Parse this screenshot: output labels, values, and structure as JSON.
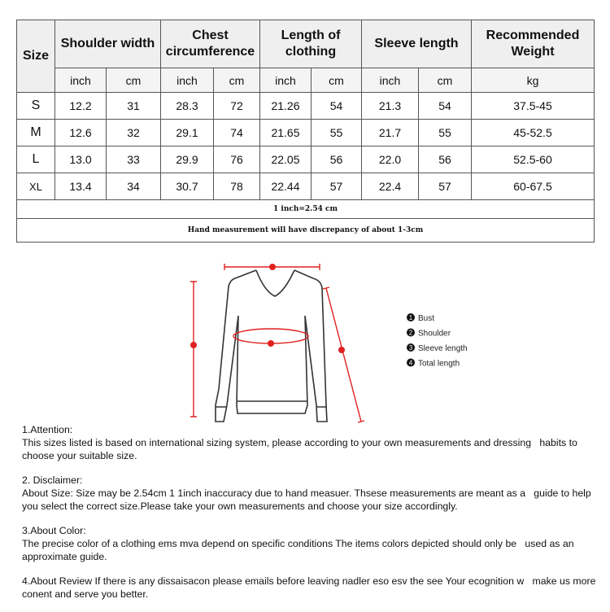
{
  "table": {
    "headers": [
      "Size",
      "Shoulder width",
      "Chest circumference",
      "Length of clothing",
      "Sleeve length",
      "Recommended Weight"
    ],
    "units": [
      "inch",
      "cm",
      "inch",
      "cm",
      "inch",
      "cm",
      "inch",
      "cm",
      "kg"
    ],
    "rows": [
      [
        "S",
        "12.2",
        "31",
        "28.3",
        "72",
        "21.26",
        "54",
        "21.3",
        "54",
        "37.5-45"
      ],
      [
        "M",
        "12.6",
        "32",
        "29.1",
        "74",
        "21.65",
        "55",
        "21.7",
        "55",
        "45-52.5"
      ],
      [
        "L",
        "13.0",
        "33",
        "29.9",
        "76",
        "22.05",
        "56",
        "22.0",
        "56",
        "52.5-60"
      ],
      [
        "XL",
        "13.4",
        "34",
        "30.7",
        "78",
        "22.44",
        "57",
        "22.4",
        "57",
        "60-67.5"
      ]
    ],
    "conversion_note": "1 inch=2.54 cm",
    "discrepancy_note": "Hand measurement will have discrepancy of about 1-3cm"
  },
  "diagram": {
    "marker_color": "#e02020",
    "legend": [
      {
        "num": "1",
        "label": "Bust"
      },
      {
        "num": "2",
        "label": "Shoulder"
      },
      {
        "num": "3",
        "label": "Sleeve length"
      },
      {
        "num": "4",
        "label": "Total length"
      }
    ]
  },
  "notes": [
    {
      "title": "1.Attention:",
      "body": "This sizes listed is based on international sizing system, please according to your own measurements and dressing   habits to choose your suitable size."
    },
    {
      "title": "2. Disclaimer:",
      "body": "About Size: Size may be 2.54cm 1 1inch inaccuracy due to hand measuer. Thsese measurements are meant as a   guide to help you select the correct size.Please take your own measurements and choose your size accordingly."
    },
    {
      "title": "3.About Color:",
      "body": "The precise color of a clothing ems mva depend on specific conditions The items colors depicted should only be   used as an approximate guide."
    },
    {
      "title": "",
      "body": "4.About Review If there is any dissaisacon please emails before leaving nadler eso esv the see Your ecognition w   make us more conent and serve you better."
    }
  ]
}
